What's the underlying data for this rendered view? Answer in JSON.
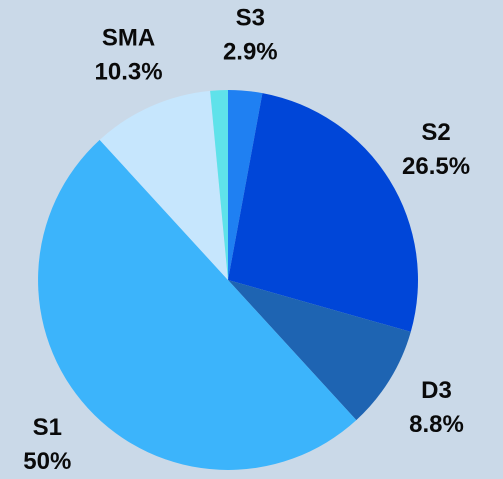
{
  "chart_data": {
    "type": "pie",
    "categories": [
      "S3",
      "S2",
      "D3",
      "S1",
      "SMA",
      null
    ],
    "values": [
      2.9,
      26.5,
      8.8,
      50,
      10.3,
      1.5
    ],
    "value_labels": [
      "2.9%",
      "26.5%",
      "8.8%",
      "50%",
      "10.3%",
      null
    ],
    "colors": [
      "#1f80f2",
      "#0046d8",
      "#1e64b2",
      "#3cb4fb",
      "#c6e6fd",
      "#5fe2ea"
    ]
  }
}
